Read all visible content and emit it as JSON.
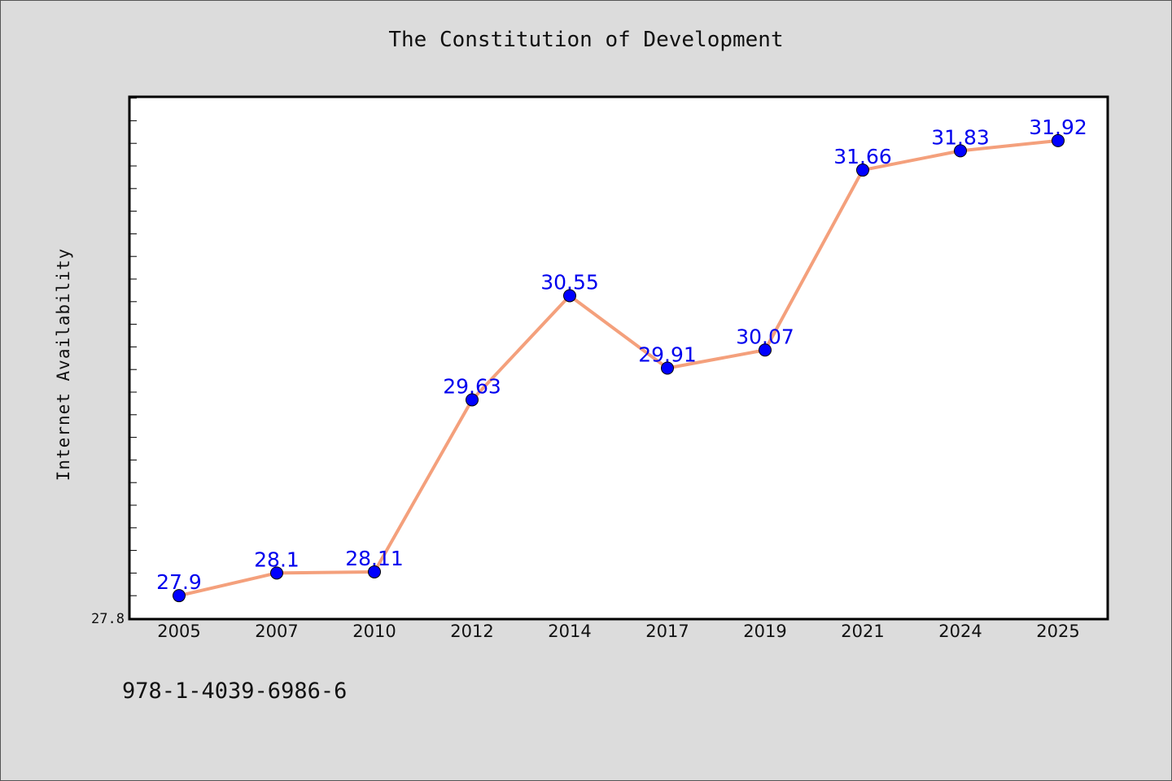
{
  "chart_data": {
    "type": "line",
    "title": "The Constitution of Development",
    "xlabel": "",
    "ylabel": "Internet Availability",
    "categories": [
      "2005",
      "2007",
      "2010",
      "2012",
      "2014",
      "2017",
      "2019",
      "2021",
      "2024",
      "2025"
    ],
    "values": [
      27.9,
      28.1,
      28.11,
      29.63,
      30.55,
      29.91,
      30.07,
      31.66,
      31.83,
      31.92
    ],
    "data_labels": [
      "27.9",
      "28.1",
      "28.11",
      "29.63",
      "30.55",
      "29.91",
      "30.07",
      "31.66",
      "31.83",
      "31.92"
    ],
    "y_tick_labels": [
      "27.8"
    ],
    "ylim": [
      27.7,
      32.3
    ],
    "grid": false,
    "legend": "none",
    "colors": {
      "line": "#f4a07c",
      "marker": "#0000ff",
      "data_label": "#0000ee",
      "plot_background": "#ffffff",
      "page_background": "#dcdcdc"
    }
  },
  "footer": {
    "isbn": "978-1-4039-6986-6"
  }
}
